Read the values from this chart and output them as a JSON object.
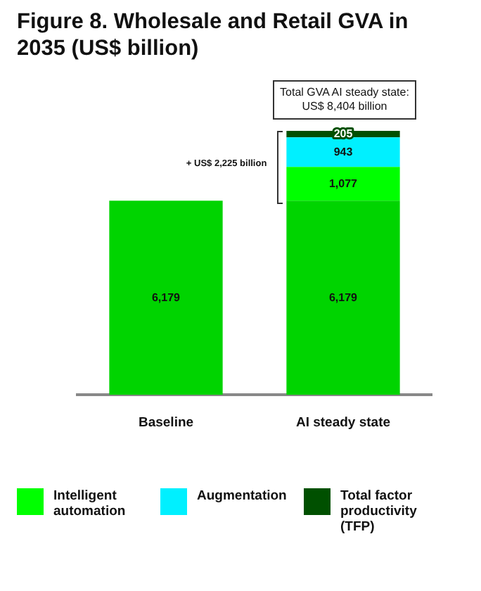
{
  "chart_data": {
    "type": "bar",
    "title": "Figure 8. Wholesale and Retail GVA in 2035 (US$ billion)",
    "categories": [
      "Baseline",
      "AI steady state"
    ],
    "stacked": true,
    "series": [
      {
        "color": "#00d400",
        "values": [
          6179,
          6179
        ],
        "value_labels": [
          "6,179",
          "6,179"
        ]
      },
      {
        "name": "Intelligent automation",
        "color": "#00ff00",
        "values": [
          null,
          1077
        ],
        "value_labels": [
          null,
          "1,077"
        ]
      },
      {
        "name": "Augmentation",
        "color": "#00f0ff",
        "values": [
          null,
          943
        ],
        "value_labels": [
          null,
          "943"
        ]
      },
      {
        "name": "Total factor productivity (TFP)",
        "color": "#005000",
        "values": [
          null,
          205
        ],
        "value_labels": [
          null,
          "205"
        ]
      }
    ],
    "annotations": [
      {
        "text": "Total GVA AI steady state: US$ 8,404 billion",
        "x": "AI steady state",
        "y": 8404
      },
      "+ US$ 2,225 billion"
    ],
    "legend": "bottom"
  }
}
